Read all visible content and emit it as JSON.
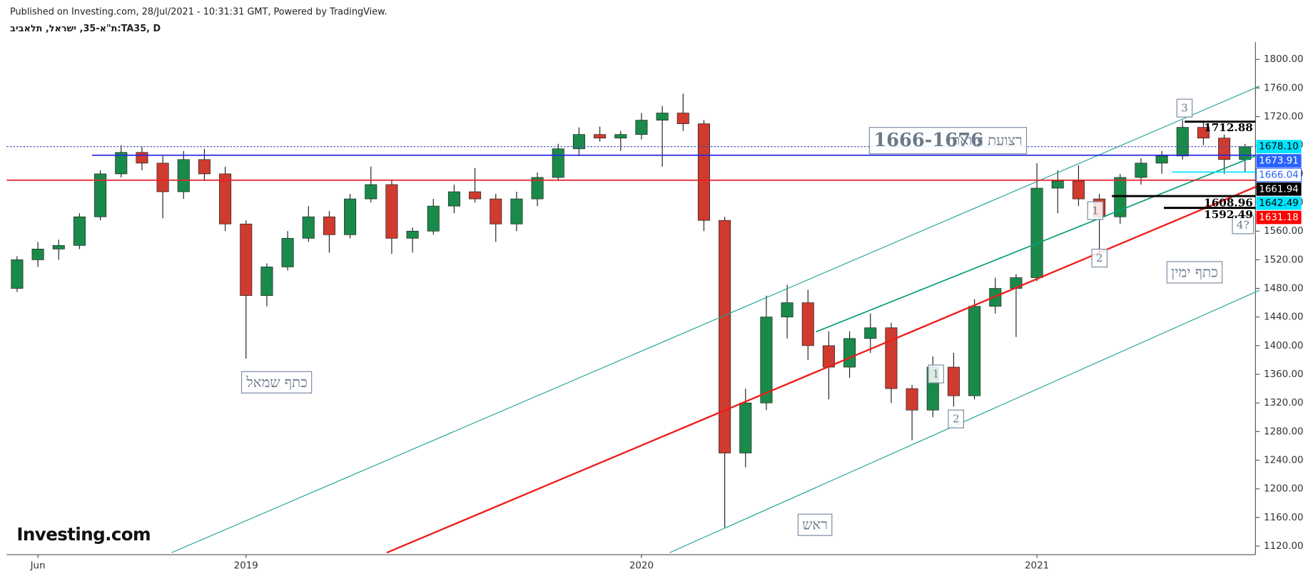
{
  "header": {
    "published": "Published on Investing.com, 28/Jul/2021 - 10:31:31 GMT, Powered by TradingView.",
    "symbol": "ת\"א-35, ישראל, תלאביב:TA35, D",
    "logo": "Investing.com"
  },
  "chart_data": {
    "type": "candlestick",
    "categories": [
      null,
      "Jun",
      null,
      null,
      null,
      null,
      null,
      null,
      null,
      null,
      null,
      "2019",
      null,
      null,
      null,
      null,
      null,
      null,
      null,
      null,
      null,
      null,
      null,
      null,
      null,
      null,
      null,
      null,
      null,
      null,
      "2020",
      null,
      null,
      null,
      null,
      null,
      null,
      null,
      null,
      null,
      null,
      null,
      null,
      null,
      null,
      null,
      null,
      null,
      null,
      "2021",
      null,
      null,
      null,
      null,
      null,
      null,
      null,
      null,
      null,
      null
    ],
    "open": [
      1480,
      1520,
      1535,
      1540,
      1580,
      1640,
      1670,
      1655,
      1615,
      1660,
      1640,
      1570,
      1470,
      1510,
      1550,
      1580,
      1555,
      1605,
      1625,
      1550,
      1560,
      1595,
      1615,
      1605,
      1570,
      1605,
      1635,
      1675,
      1695,
      1690,
      1695,
      1715,
      1725,
      1710,
      1575,
      1250,
      1320,
      1440,
      1460,
      1400,
      1370,
      1410,
      1425,
      1340,
      1310,
      1370,
      1330,
      1455,
      1480,
      1495,
      1620,
      1630,
      1605,
      1580,
      1635,
      1655,
      1665,
      1705,
      1690,
      1660
    ],
    "high": [
      1525,
      1545,
      1548,
      1585,
      1645,
      1680,
      1678,
      1665,
      1672,
      1675,
      1650,
      1575,
      1515,
      1560,
      1595,
      1588,
      1612,
      1650,
      1632,
      1565,
      1605,
      1625,
      1648,
      1612,
      1615,
      1642,
      1682,
      1705,
      1706,
      1700,
      1725,
      1735,
      1752,
      1715,
      1580,
      1340,
      1470,
      1485,
      1478,
      1420,
      1420,
      1445,
      1432,
      1345,
      1385,
      1390,
      1465,
      1495,
      1500,
      1655,
      1645,
      1652,
      1612,
      1640,
      1662,
      1672,
      1715,
      1712,
      1695,
      1682
    ],
    "low": [
      1475,
      1510,
      1520,
      1535,
      1575,
      1635,
      1645,
      1578,
      1605,
      1630,
      1560,
      1382,
      1455,
      1505,
      1545,
      1530,
      1550,
      1600,
      1528,
      1530,
      1555,
      1585,
      1600,
      1545,
      1560,
      1595,
      1630,
      1665,
      1685,
      1672,
      1688,
      1650,
      1700,
      1560,
      1146,
      1230,
      1310,
      1410,
      1380,
      1325,
      1355,
      1390,
      1320,
      1268,
      1300,
      1315,
      1325,
      1445,
      1412,
      1490,
      1585,
      1595,
      1525,
      1570,
      1625,
      1640,
      1660,
      1680,
      1640,
      1642
    ],
    "close": [
      1520,
      1535,
      1540,
      1580,
      1640,
      1670,
      1655,
      1615,
      1660,
      1640,
      1570,
      1470,
      1510,
      1550,
      1580,
      1555,
      1605,
      1625,
      1550,
      1560,
      1595,
      1615,
      1605,
      1570,
      1605,
      1635,
      1675,
      1695,
      1690,
      1695,
      1715,
      1725,
      1710,
      1575,
      1250,
      1320,
      1440,
      1460,
      1400,
      1370,
      1410,
      1425,
      1340,
      1310,
      1370,
      1330,
      1455,
      1480,
      1495,
      1620,
      1630,
      1605,
      1580,
      1635,
      1655,
      1665,
      1705,
      1690,
      1660,
      1678
    ],
    "up_color": "#1a8a4a",
    "down_color": "#cf3b2e",
    "ylim": [
      1108,
      1824
    ],
    "yticks": [
      {
        "value": 1120,
        "label": "1120.00"
      },
      {
        "value": 1160,
        "label": "1160.00"
      },
      {
        "value": 1200,
        "label": "1200.00"
      },
      {
        "value": 1240,
        "label": "1240.00"
      },
      {
        "value": 1280,
        "label": "1280.00"
      },
      {
        "value": 1320,
        "label": "1320.00"
      },
      {
        "value": 1360,
        "label": "1360.00"
      },
      {
        "value": 1400,
        "label": "1400.00"
      },
      {
        "value": 1440,
        "label": "1440.00"
      },
      {
        "value": 1480,
        "label": "1480.00"
      },
      {
        "value": 1520,
        "label": "1520.00"
      },
      {
        "value": 1560,
        "label": "1560.00"
      },
      {
        "value": 1600,
        "label": "1600.00"
      },
      {
        "value": 1640,
        "label": "1640.00"
      },
      {
        "value": 1680,
        "label": "1680.00"
      },
      {
        "value": 1720,
        "label": "1720.00"
      },
      {
        "value": 1760,
        "label": "1760.00"
      },
      {
        "value": 1800,
        "label": "1800.00"
      }
    ],
    "price_tags": [
      {
        "value": 1678.1,
        "label": "1678.10",
        "bg": "#00e5ff",
        "fg": "#000000",
        "line": {
          "x0": -0.5,
          "color": "#3f51b5",
          "dash": "2 2",
          "width": 1
        }
      },
      {
        "value": 1673.91,
        "label": "1673.91",
        "bg": "#2962ff",
        "fg": "#ffffff"
      },
      {
        "value": 1666.04,
        "label": "1666.04",
        "bg": "#ffffff",
        "fg": "#2962ff",
        "line": {
          "x0": 3.6,
          "color": "#2929e6",
          "width": 1.5
        }
      },
      {
        "value": 1661.94,
        "label": "1661.94",
        "bg": "#000000",
        "fg": "#ffffff"
      },
      {
        "value": 1642.49,
        "label": "1642.49",
        "bg": "#00e5ff",
        "fg": "#000000",
        "line": {
          "x0": 55.5,
          "color": "#00e5ff",
          "width": 1.5
        }
      },
      {
        "value": 1631.18,
        "label": "1631.18",
        "bg": "#ff0000",
        "fg": "#ffffff",
        "line": {
          "x0": -0.5,
          "color": "#e8202a",
          "width": 1.5
        }
      }
    ],
    "levels": [
      {
        "value": 1712.88,
        "label": "1712.88",
        "x0": 56.1
      },
      {
        "value": 1608.96,
        "label": "1608.96",
        "x0": 52.6
      },
      {
        "value": 1592.49,
        "label": "1592.49",
        "x0": 55.1
      }
    ],
    "trendlines": [
      {
        "x": [
          7.42,
          59.7
        ],
        "y": [
          1110.8,
          1762.7
        ],
        "color": "#26a69a",
        "width": 1
      },
      {
        "x": [
          17.76,
          59.7
        ],
        "y": [
          1110.8,
          1624.2
        ],
        "color": "#ee1c1c",
        "width": 2
      },
      {
        "x": [
          31.35,
          59.7
        ],
        "y": [
          1110.8,
          1477.5
        ],
        "color": "#26a69a",
        "width": 1
      },
      {
        "x": [
          38.38,
          59.7
        ],
        "y": [
          1419.3,
          1667.3
        ],
        "color": "#0e9f7e",
        "width": 1.5
      }
    ],
    "annotations": {
      "neck_text": "רצועת צוואר",
      "neck_range": "1666-1676",
      "left_shoulder": "כתף שמאל",
      "head": "ראש",
      "right_shoulder": "כתף ימין",
      "waves": [
        "3",
        "1",
        "2",
        "1",
        "2",
        "4?"
      ]
    }
  }
}
